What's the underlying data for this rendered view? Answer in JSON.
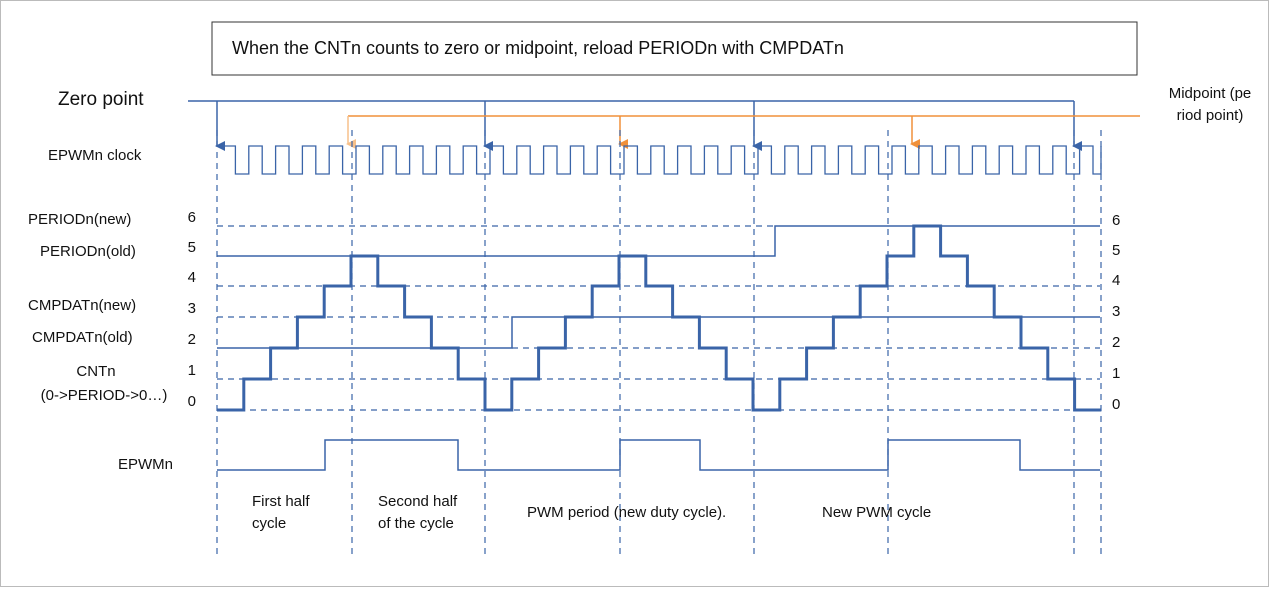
{
  "title": "When the CNTn counts to zero or midpoint, reload PERIODn with CMPDATn",
  "zero_point": "Zero point",
  "midpoint": [
    "Midpoint (pe",
    "riod point)"
  ],
  "signals": {
    "clock": "EPWMn clock",
    "period_new": "PERIODn(new)",
    "period_old": "PERIODn(old)",
    "cmpdat_new": "CMPDATn(new)",
    "cmpdat_old": "CMPDATn(old)",
    "cnt": [
      "CNTn",
      "(0->PERIOD->0…)"
    ],
    "epwm": "EPWMn"
  },
  "levels_left": [
    "6",
    "5",
    "4",
    "3",
    "2",
    "1",
    "0"
  ],
  "levels_right": [
    "6",
    "5",
    "4",
    "3",
    "2",
    "1",
    "0"
  ],
  "phases": [
    [
      "First half",
      "cycle"
    ],
    [
      "Second half",
      "of the cycle"
    ],
    [
      "PWM period (new duty cycle)."
    ],
    [
      "New PWM cycle"
    ]
  ]
}
